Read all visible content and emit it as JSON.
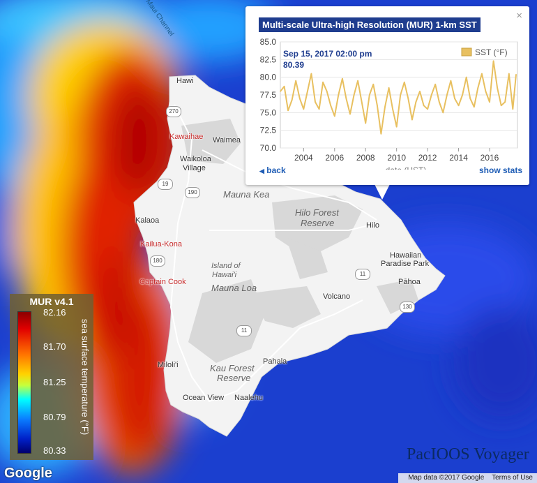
{
  "popup": {
    "title": "Multi-scale Ultra-high Resolution (MUR) 1-km SST",
    "close_label": "×",
    "back_label": "back",
    "stats_label": "show stats"
  },
  "chart_data": {
    "type": "line",
    "title": "Multi-scale Ultra-high Resolution (MUR) 1-km SST",
    "xlabel": "date (HST)",
    "ylabel": "",
    "legend": "SST (°F)",
    "tooltip": {
      "date": "Sep 15, 2017 02:00 pm",
      "value": "80.39"
    },
    "ylim": [
      70.0,
      85.0
    ],
    "yticks": [
      "85.0",
      "82.5",
      "80.0",
      "77.5",
      "75.0",
      "72.5",
      "70.0"
    ],
    "xticks": [
      "2004",
      "2006",
      "2008",
      "2010",
      "2012",
      "2014",
      "2016"
    ],
    "xlim": [
      2002.5,
      2017.8
    ],
    "series": [
      {
        "name": "SST (°F)",
        "x": [
          2002.5,
          2002.75,
          2003.0,
          2003.25,
          2003.5,
          2003.75,
          2004.0,
          2004.25,
          2004.5,
          2004.75,
          2005.0,
          2005.25,
          2005.5,
          2005.75,
          2006.0,
          2006.25,
          2006.5,
          2006.75,
          2007.0,
          2007.25,
          2007.5,
          2007.75,
          2008.0,
          2008.25,
          2008.5,
          2008.75,
          2009.0,
          2009.25,
          2009.5,
          2009.75,
          2010.0,
          2010.25,
          2010.5,
          2010.75,
          2011.0,
          2011.25,
          2011.5,
          2011.75,
          2012.0,
          2012.25,
          2012.5,
          2012.75,
          2013.0,
          2013.25,
          2013.5,
          2013.75,
          2014.0,
          2014.25,
          2014.5,
          2014.75,
          2015.0,
          2015.25,
          2015.5,
          2015.75,
          2016.0,
          2016.25,
          2016.5,
          2016.75,
          2017.0,
          2017.25,
          2017.5,
          2017.71
        ],
        "values": [
          78.0,
          78.7,
          75.3,
          76.8,
          79.5,
          77.0,
          75.5,
          78.0,
          80.5,
          76.5,
          75.5,
          79.3,
          78.0,
          76.0,
          74.5,
          77.5,
          79.8,
          77.0,
          74.8,
          77.5,
          79.5,
          76.5,
          73.5,
          77.5,
          79.0,
          76.0,
          72.0,
          75.8,
          78.5,
          75.5,
          73.0,
          77.5,
          79.3,
          77.0,
          74.0,
          76.5,
          78.0,
          76.0,
          75.5,
          77.5,
          79.0,
          76.5,
          75.0,
          77.5,
          79.5,
          77.0,
          76.0,
          77.5,
          80.0,
          77.0,
          75.8,
          78.5,
          80.5,
          78.0,
          76.5,
          82.3,
          78.5,
          76.0,
          76.5,
          80.5,
          75.5,
          80.39
        ]
      }
    ]
  },
  "legend": {
    "title": "MUR v4.1",
    "ticks": [
      "82.16",
      "81.70",
      "81.25",
      "80.79",
      "80.33"
    ],
    "axis_label": "sea surface temperature (°F)"
  },
  "map_labels": {
    "hawi": "Hawi",
    "kawaihae": "Kawaihae",
    "waimea": "Waimea",
    "waikoloa_1": "Waikoloa",
    "waikoloa_2": "Village",
    "mauna_kea": "Mauna Kea",
    "hilo_forest_1": "Hilo Forest",
    "hilo_forest_2": "Reserve",
    "hilo": "Hilo",
    "kalaoa": "Kalaoa",
    "kailua_kona": "Kailua-Kona",
    "island_1": "Island of",
    "island_2": "Hawai'i",
    "hawaiian_1": "Hawaiian",
    "hawaiian_2": "Paradise Park",
    "captain_cook": "Captain Cook",
    "mauna_loa": "Mauna Loa",
    "pahoa": "Pāhoa",
    "volcano": "Volcano",
    "milolii": "Miloli'i",
    "kau_forest_1": "Kau Forest",
    "kau_forest_2": "Reserve",
    "pahala": "Pahala",
    "ocean_view": "Ocean View",
    "naalehu": "Naalehu",
    "channel": "Maui Channel",
    "route_270": "270",
    "route_19": "19",
    "route_190": "190",
    "route_180": "180",
    "route_11a": "11",
    "route_11b": "11",
    "route_130": "130"
  },
  "footer": {
    "google": "Google",
    "map_data": "Map data ©2017 Google",
    "terms": "Terms of Use",
    "brand": "PacIOOS Voyager"
  },
  "colors": {
    "title_bg": "#1f3d8f",
    "series": "#e8c060",
    "link": "#1f5db5"
  }
}
